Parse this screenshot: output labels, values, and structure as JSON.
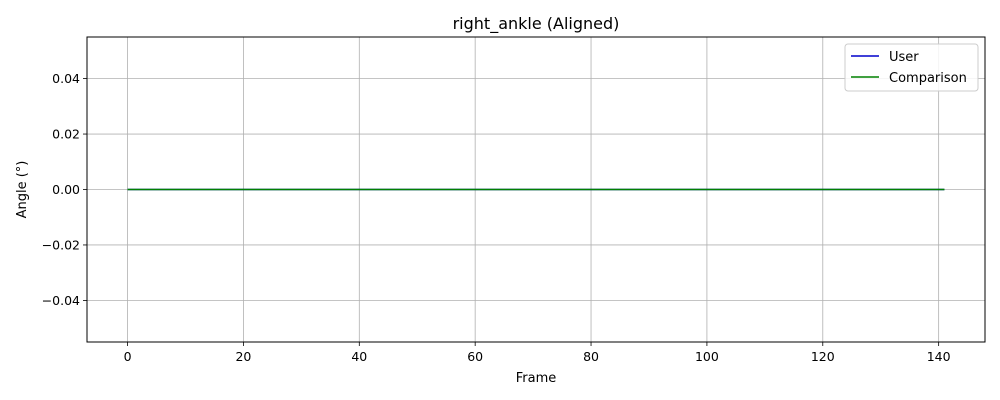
{
  "chart_data": {
    "type": "line",
    "title": "right_ankle (Aligned)",
    "xlabel": "Frame",
    "ylabel": "Angle (°)",
    "xlim": [
      -7,
      148
    ],
    "ylim": [
      -0.055,
      0.055
    ],
    "x_ticks": [
      0,
      20,
      40,
      60,
      80,
      100,
      120,
      140
    ],
    "y_ticks": [
      -0.04,
      -0.02,
      0.0,
      0.02,
      0.04
    ],
    "y_tick_labels": [
      "−0.04",
      "−0.02",
      "0.00",
      "0.02",
      "0.04"
    ],
    "grid": true,
    "legend_position": "top-right",
    "series": [
      {
        "name": "User",
        "color": "#0000cc",
        "x": [
          0,
          141
        ],
        "y": [
          0,
          0
        ]
      },
      {
        "name": "Comparison",
        "color": "#008000",
        "x": [
          0,
          141
        ],
        "y": [
          0,
          0
        ]
      }
    ]
  }
}
